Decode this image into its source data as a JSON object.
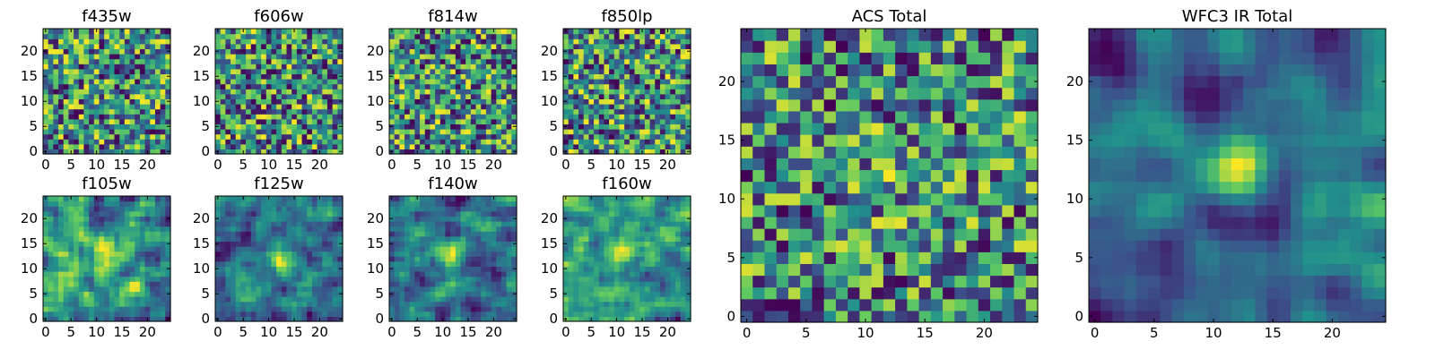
{
  "chart_data": {
    "type": "heatmap",
    "grid_size": 25,
    "colormap": [
      "#440154",
      "#3b528b",
      "#21918c",
      "#5ec962",
      "#fde725"
    ],
    "panels": [
      {
        "id": "f435w",
        "title": "f435w",
        "xticks": [
          "0",
          "5",
          "10",
          "15",
          "20"
        ],
        "yticks": [
          "0",
          "5",
          "10",
          "15",
          "20"
        ],
        "seed": 11,
        "smooth": 0,
        "hot": []
      },
      {
        "id": "f606w",
        "title": "f606w",
        "xticks": [
          "0",
          "5",
          "10",
          "15",
          "20"
        ],
        "yticks": [
          "0",
          "5",
          "10",
          "15",
          "20"
        ],
        "seed": 23,
        "smooth": 0,
        "hot": []
      },
      {
        "id": "f814w",
        "title": "f814w",
        "xticks": [
          "0",
          "5",
          "10",
          "15",
          "20"
        ],
        "yticks": [
          "0",
          "5",
          "10",
          "15",
          "20"
        ],
        "seed": 37,
        "smooth": 0,
        "hot": []
      },
      {
        "id": "f850lp",
        "title": "f850lp",
        "xticks": [
          "0",
          "5",
          "10",
          "15",
          "20"
        ],
        "yticks": [
          "0",
          "5",
          "10",
          "15",
          "20"
        ],
        "seed": 41,
        "smooth": 0,
        "hot": []
      },
      {
        "id": "f105w",
        "title": "f105w",
        "xticks": [
          "0",
          "5",
          "10",
          "15",
          "20"
        ],
        "yticks": [
          "0",
          "5",
          "10",
          "15",
          "20"
        ],
        "seed": 53,
        "smooth": 1,
        "hot": [
          12,
          12,
          0.25
        ]
      },
      {
        "id": "f125w",
        "title": "f125w",
        "xticks": [
          "0",
          "5",
          "10",
          "15",
          "20"
        ],
        "yticks": [
          "0",
          "5",
          "10",
          "15",
          "20"
        ],
        "seed": 67,
        "smooth": 1,
        "hot": [
          12,
          12,
          0.3
        ]
      },
      {
        "id": "f140w",
        "title": "f140w",
        "xticks": [
          "0",
          "5",
          "10",
          "15",
          "20"
        ],
        "yticks": [
          "0",
          "5",
          "10",
          "15",
          "20"
        ],
        "seed": 71,
        "smooth": 1,
        "hot": [
          12,
          13,
          0.3
        ]
      },
      {
        "id": "f160w",
        "title": "f160w",
        "xticks": [
          "0",
          "5",
          "10",
          "15",
          "20"
        ],
        "yticks": [
          "0",
          "5",
          "10",
          "15",
          "20"
        ],
        "seed": 83,
        "smooth": 1,
        "hot": [
          12,
          13,
          0.35
        ]
      },
      {
        "id": "acs_total",
        "title": "ACS Total",
        "xticks": [
          "0",
          "5",
          "10",
          "15",
          "20"
        ],
        "yticks": [
          "0",
          "5",
          "10",
          "15",
          "20"
        ],
        "seed": 97,
        "smooth": 0,
        "hot": [
          12,
          12,
          0.15
        ]
      },
      {
        "id": "wfc3_ir_total",
        "title": "WFC3 IR Total",
        "xticks": [
          "0",
          "5",
          "10",
          "15",
          "20"
        ],
        "yticks": [
          "0",
          "5",
          "10",
          "15",
          "20"
        ],
        "seed": 109,
        "smooth": 2,
        "hot": [
          12,
          12,
          0.45
        ]
      }
    ]
  }
}
